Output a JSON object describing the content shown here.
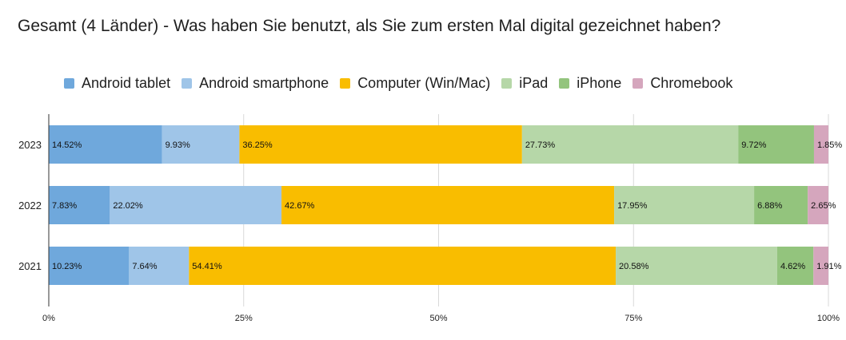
{
  "chart_data": {
    "type": "bar",
    "orientation": "horizontal",
    "stacked": "percent",
    "title": "Gesamt (4 Länder) - Was haben Sie benutzt, als Sie zum ersten Mal digital gezeichnet haben?",
    "categories": [
      "2023",
      "2022",
      "2021"
    ],
    "series": [
      {
        "name": "Android tablet",
        "color": "#6fa8dc",
        "values": [
          14.52,
          7.83,
          10.23
        ],
        "labels": [
          "14.52%",
          "7.83%",
          "10.23%"
        ]
      },
      {
        "name": "Android smartphone",
        "color": "#9fc5e8",
        "values": [
          9.93,
          22.02,
          7.64
        ],
        "labels": [
          "9.93%",
          "22.02%",
          "7.64%"
        ]
      },
      {
        "name": "Computer (Win/Mac)",
        "color": "#f9bd00",
        "values": [
          36.25,
          42.67,
          54.41
        ],
        "labels": [
          "36.25%",
          "42.67%",
          "54.41%"
        ]
      },
      {
        "name": "iPad",
        "color": "#b6d7a8",
        "values": [
          27.73,
          17.95,
          20.58
        ],
        "labels": [
          "27.73%",
          "17.95%",
          "20.58%"
        ]
      },
      {
        "name": "iPhone",
        "color": "#93c47d",
        "values": [
          9.72,
          6.88,
          4.62
        ],
        "labels": [
          "9.72%",
          "6.88%",
          "4.62%"
        ]
      },
      {
        "name": "Chromebook",
        "color": "#d5a6bd",
        "values": [
          1.85,
          2.65,
          1.91
        ],
        "labels": [
          "1.85%",
          "2.65%",
          "1.91%"
        ]
      }
    ],
    "xlim": [
      0,
      100
    ],
    "x_ticks": [
      "0%",
      "25%",
      "50%",
      "75%",
      "100%"
    ],
    "grid": true,
    "legend_position": "top"
  }
}
